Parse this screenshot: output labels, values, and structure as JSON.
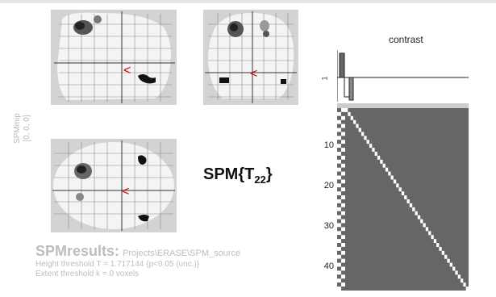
{
  "window": {
    "title": "SPM results"
  },
  "side_label": {
    "line1": "SPMmip",
    "line2": "[0, 0, 0]"
  },
  "stat_label": {
    "prefix": "SPM{T",
    "subscript": "22",
    "suffix": "}"
  },
  "results": {
    "title": "SPMresults:",
    "path": "Projects\\ERASE\\SPM_source",
    "height_threshold": "Height threshold T = 1.717144  {p<0.05 (unc.)}",
    "extent_threshold": "Extent threshold k = 0 voxels"
  },
  "contrast": {
    "title": "contrast",
    "weight_tick": "1"
  },
  "design_matrix": {
    "y_ticks": [
      "10",
      "20",
      "30",
      "40"
    ]
  },
  "colors": {
    "background": "#ffffff",
    "mip_bg": "#d3d3d3",
    "brain": "#f4f4f4",
    "design_bg": "#666666",
    "cursor": "#cc0000"
  },
  "icons": [
    "glass-brain-sagittal-icon",
    "glass-brain-coronal-icon",
    "glass-brain-axial-icon",
    "cursor-arrow-icon"
  ]
}
